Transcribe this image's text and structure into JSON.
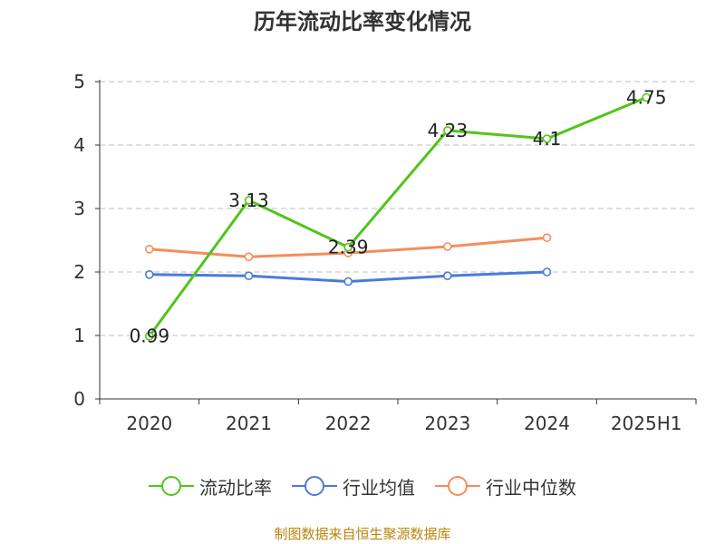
{
  "chart_data": {
    "type": "line",
    "title": "历年流动比率变化情况",
    "categories": [
      "2020",
      "2021",
      "2022",
      "2023",
      "2024",
      "2025H1"
    ],
    "ylim": [
      0,
      5
    ],
    "yticks": [
      "0",
      "1",
      "2",
      "3",
      "4",
      "5"
    ],
    "grid": true,
    "legend_position": "bottom",
    "series": [
      {
        "name": "流动比率",
        "color": "#52c41a",
        "values": [
          0.99,
          3.13,
          2.39,
          4.23,
          4.1,
          4.75
        ],
        "labels": [
          "0.99",
          "3.13",
          "2.39",
          "4.23",
          "4.1",
          "4.75"
        ]
      },
      {
        "name": "行业均值",
        "color": "#4a7bd8",
        "values": [
          1.96,
          1.94,
          1.85,
          1.94,
          2.0,
          null
        ]
      },
      {
        "name": "行业中位数",
        "color": "#f58d5c",
        "values": [
          2.36,
          2.24,
          2.3,
          2.4,
          2.54,
          null
        ]
      }
    ]
  },
  "footer": {
    "source": "制图数据来自恒生聚源数据库"
  }
}
